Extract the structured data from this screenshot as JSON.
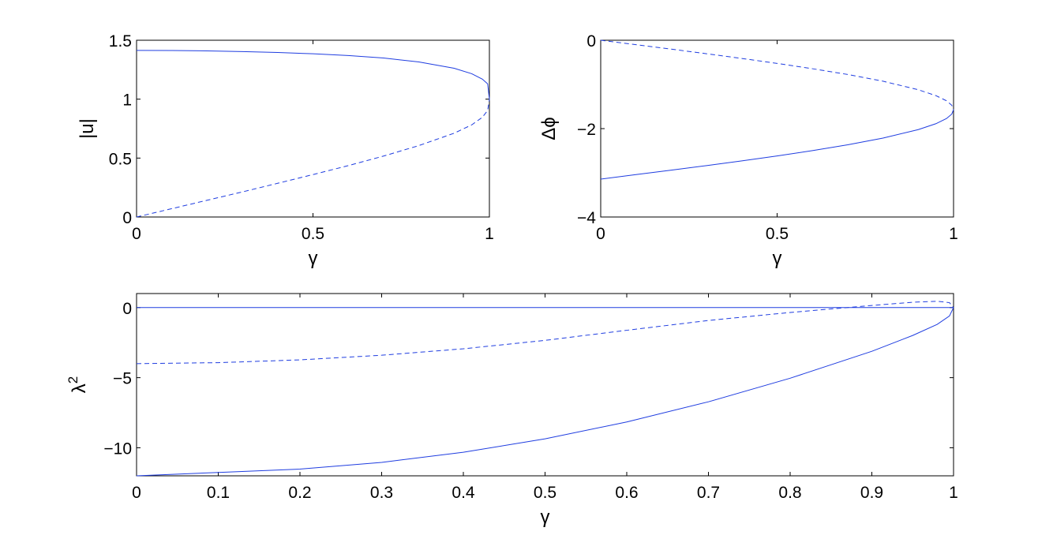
{
  "colors": {
    "line": "#1f3de0",
    "axes": "#000000",
    "background": "#ffffff"
  },
  "chart_data": [
    {
      "type": "line",
      "panel": "top-left",
      "xlabel": "γ",
      "ylabel": "|u|",
      "xlim": [
        0,
        1
      ],
      "ylim": [
        0,
        1.5
      ],
      "xticks": [
        0,
        0.5,
        1
      ],
      "xtick_labels": [
        "0",
        "0.5",
        "1"
      ],
      "yticks": [
        0,
        0.5,
        1,
        1.5
      ],
      "ytick_labels": [
        "0",
        "0.5",
        "1",
        "1.5"
      ],
      "grid": false,
      "series": [
        {
          "style": "solid",
          "x": [
            0,
            0.1,
            0.2,
            0.3,
            0.4,
            0.5,
            0.6,
            0.7,
            0.8,
            0.9,
            0.95,
            0.98,
            0.995,
            1.0
          ],
          "y": [
            1.414,
            1.413,
            1.41,
            1.404,
            1.396,
            1.385,
            1.37,
            1.349,
            1.316,
            1.262,
            1.216,
            1.17,
            1.13,
            1.0
          ]
        },
        {
          "style": "dashed",
          "x": [
            0,
            0.1,
            0.2,
            0.3,
            0.4,
            0.5,
            0.6,
            0.7,
            0.8,
            0.9,
            0.95,
            0.98,
            0.995,
            1.0
          ],
          "y": [
            0,
            0.071,
            0.142,
            0.213,
            0.286,
            0.36,
            0.436,
            0.517,
            0.606,
            0.711,
            0.782,
            0.846,
            0.904,
            1.0
          ]
        }
      ]
    },
    {
      "type": "line",
      "panel": "top-right",
      "xlabel": "γ",
      "ylabel": "Δϕ",
      "xlim": [
        0,
        1
      ],
      "ylim": [
        -4,
        0
      ],
      "xticks": [
        0,
        0.5,
        1
      ],
      "xtick_labels": [
        "0",
        "0.5",
        "1"
      ],
      "yticks": [
        -4,
        -2,
        0
      ],
      "ytick_labels": [
        "−4",
        "−2",
        "0"
      ],
      "grid": false,
      "series": [
        {
          "style": "dashed",
          "x": [
            0,
            0.1,
            0.2,
            0.3,
            0.4,
            0.5,
            0.6,
            0.7,
            0.8,
            0.9,
            0.95,
            0.98,
            0.995,
            1.0
          ],
          "y": [
            0,
            -0.1,
            -0.201,
            -0.305,
            -0.412,
            -0.524,
            -0.644,
            -0.775,
            -0.927,
            -1.12,
            -1.253,
            -1.37,
            -1.471,
            -1.571
          ]
        },
        {
          "style": "solid",
          "x": [
            0,
            0.1,
            0.2,
            0.3,
            0.4,
            0.5,
            0.6,
            0.7,
            0.8,
            0.9,
            0.95,
            0.98,
            0.995,
            1.0
          ],
          "y": [
            -3.142,
            -3.041,
            -2.94,
            -2.837,
            -2.73,
            -2.618,
            -2.498,
            -2.366,
            -2.214,
            -2.022,
            -1.889,
            -1.772,
            -1.671,
            -1.571
          ]
        }
      ]
    },
    {
      "type": "line",
      "panel": "bottom",
      "xlabel": "γ",
      "ylabel": "λ2",
      "ylabel_base": "λ",
      "ylabel_sup": "2",
      "xlim": [
        0,
        1
      ],
      "ylim": [
        -12,
        1
      ],
      "xticks": [
        0,
        0.1,
        0.2,
        0.3,
        0.4,
        0.5,
        0.6,
        0.7,
        0.8,
        0.9,
        1
      ],
      "xtick_labels": [
        "0",
        "0.1",
        "0.2",
        "0.3",
        "0.4",
        "0.5",
        "0.6",
        "0.7",
        "0.8",
        "0.9",
        "1"
      ],
      "yticks": [
        -10,
        -5,
        0
      ],
      "ytick_labels": [
        "−10",
        "−5",
        "0"
      ],
      "grid": false,
      "series": [
        {
          "style": "solid",
          "x": [
            0,
            1
          ],
          "y": [
            0,
            0
          ]
        },
        {
          "style": "dashed",
          "x": [
            0,
            0.1,
            0.2,
            0.3,
            0.4,
            0.5,
            0.6,
            0.7,
            0.8,
            0.85,
            0.9,
            0.95,
            0.98,
            0.995,
            1.0
          ],
          "y": [
            -4.0,
            -3.93,
            -3.73,
            -3.4,
            -2.94,
            -2.34,
            -1.62,
            -0.92,
            -0.35,
            -0.1,
            0.15,
            0.38,
            0.45,
            0.35,
            0.0
          ]
        },
        {
          "style": "solid",
          "x": [
            0,
            0.1,
            0.2,
            0.3,
            0.4,
            0.5,
            0.6,
            0.7,
            0.8,
            0.9,
            0.95,
            0.98,
            0.995,
            1.0
          ],
          "y": [
            -12.0,
            -11.76,
            -11.52,
            -11.04,
            -10.32,
            -9.36,
            -8.16,
            -6.72,
            -5.04,
            -3.12,
            -1.99,
            -1.2,
            -0.6,
            0.0
          ]
        }
      ]
    }
  ]
}
